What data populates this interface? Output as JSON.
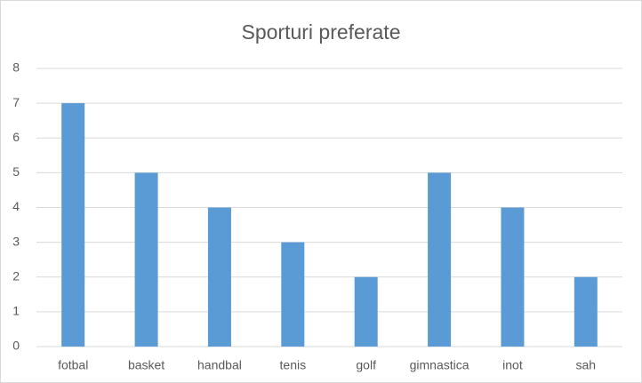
{
  "chart_data": {
    "type": "bar",
    "title": "Sporturi preferate",
    "categories": [
      "fotbal",
      "basket",
      "handbal",
      "tenis",
      "golf",
      "gimnastica",
      "inot",
      "sah"
    ],
    "values": [
      7,
      5,
      4,
      3,
      2,
      5,
      4,
      2
    ],
    "color": "#5b9bd5",
    "ylim": [
      0,
      8
    ],
    "yticks": [
      0,
      1,
      2,
      3,
      4,
      5,
      6,
      7,
      8
    ],
    "grid": true
  }
}
